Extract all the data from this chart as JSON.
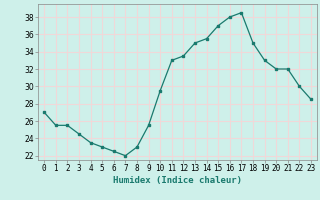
{
  "x": [
    0,
    1,
    2,
    3,
    4,
    5,
    6,
    7,
    8,
    9,
    10,
    11,
    12,
    13,
    14,
    15,
    16,
    17,
    18,
    19,
    20,
    21,
    22,
    23
  ],
  "y": [
    27,
    25.5,
    25.5,
    24.5,
    23.5,
    23,
    22.5,
    22,
    23,
    25.5,
    29.5,
    33,
    33.5,
    35,
    35.5,
    37,
    38,
    38.5,
    35,
    33,
    32,
    32,
    30,
    28.5
  ],
  "line_color": "#1a7a6e",
  "marker": "s",
  "marker_size": 2,
  "bg_color": "#cef0ea",
  "grid_color": "#f0d8d8",
  "xlabel": "Humidex (Indice chaleur)",
  "ylim": [
    21.5,
    39.5
  ],
  "yticks": [
    22,
    24,
    26,
    28,
    30,
    32,
    34,
    36,
    38
  ],
  "xlim": [
    -0.5,
    23.5
  ],
  "xtick_labels": [
    "0",
    "1",
    "2",
    "3",
    "4",
    "5",
    "6",
    "7",
    "8",
    "9",
    "10",
    "11",
    "12",
    "13",
    "14",
    "15",
    "16",
    "17",
    "18",
    "19",
    "20",
    "21",
    "22",
    "23"
  ],
  "label_fontsize": 6.5,
  "tick_fontsize": 5.5
}
